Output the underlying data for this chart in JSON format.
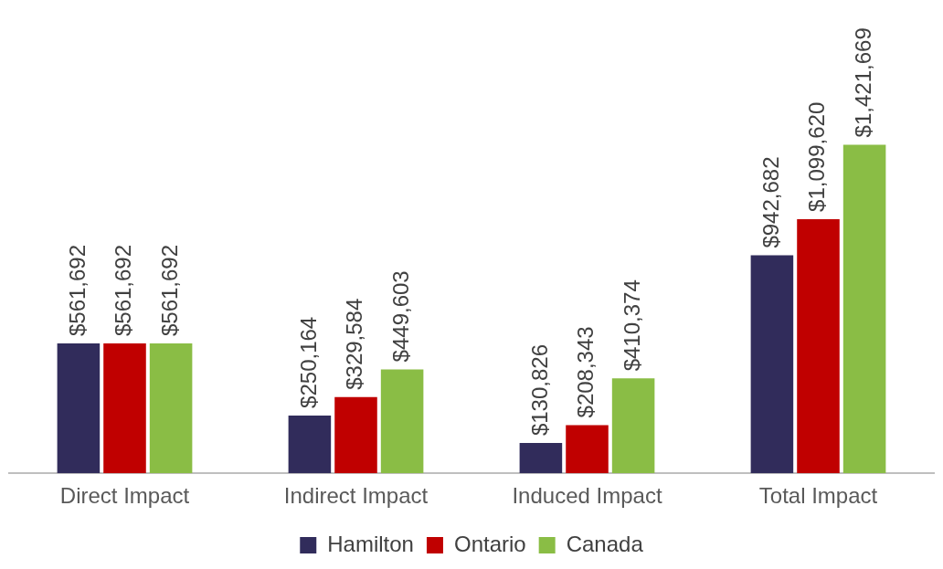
{
  "chart_data": {
    "type": "bar",
    "categories": [
      "Direct Impact",
      "Indirect Impact",
      "Induced Impact",
      "Total Impact"
    ],
    "series": [
      {
        "name": "Hamilton",
        "color": "#312c5b",
        "values": [
          561692,
          250164,
          130826,
          942682
        ],
        "value_labels": [
          "$561,692",
          "$250,164",
          "$130,826",
          "$942,682"
        ]
      },
      {
        "name": "Ontario",
        "color": "#c00000",
        "values": [
          561692,
          329584,
          208343,
          1099620
        ],
        "value_labels": [
          "$561,692",
          "$329,584",
          "$208,343",
          "$1,099,620"
        ]
      },
      {
        "name": "Canada",
        "color": "#8abd45",
        "values": [
          561692,
          449603,
          410374,
          1421669
        ],
        "value_labels": [
          "$561,692",
          "$449,603",
          "$410,374",
          "$1,421,669"
        ]
      }
    ],
    "legend": "bottom",
    "grid": false
  }
}
